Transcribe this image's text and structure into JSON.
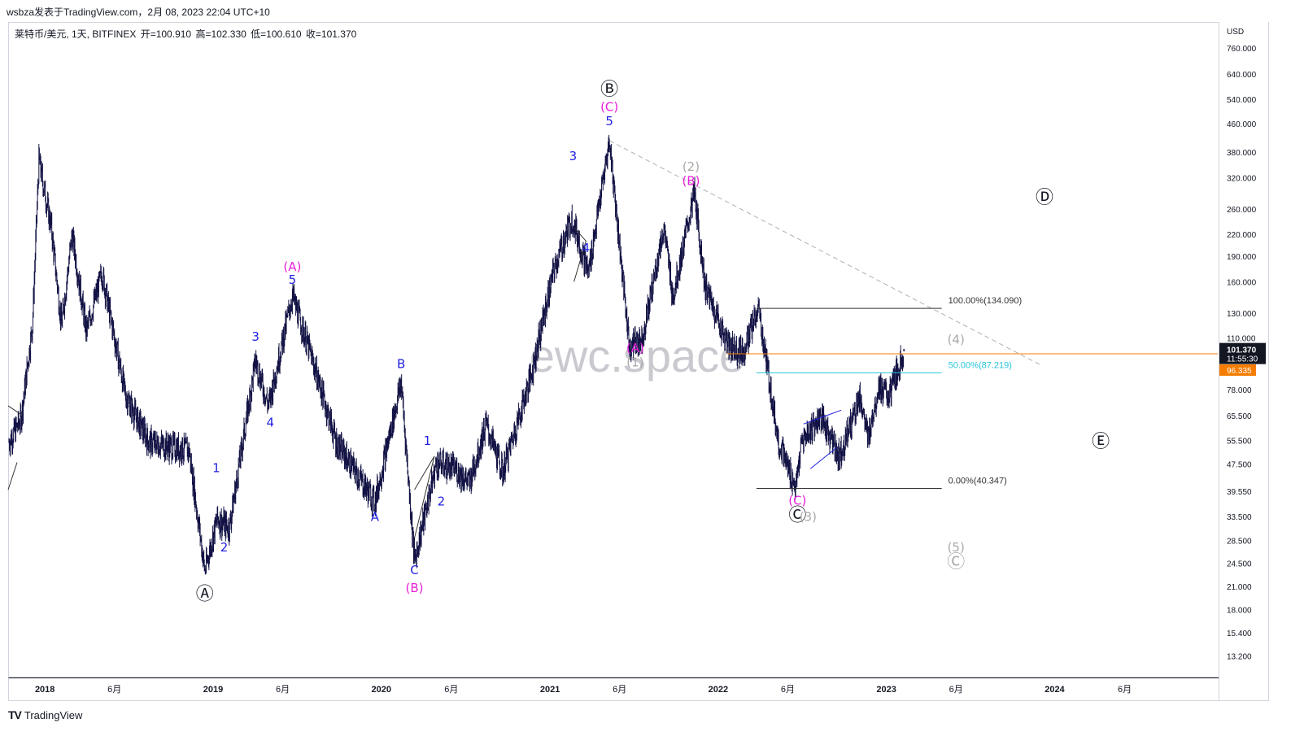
{
  "header": {
    "publish_line": "wsbza发表于TradingView.com，2月 08, 2023 22:04 UTC+10"
  },
  "legend": {
    "symbol": "莱特币/美元, 1天, BITFINEX",
    "open_label": "开=100.910",
    "high_label": "高=102.330",
    "low_label": "低=100.610",
    "close_label": "收=101.370"
  },
  "watermark": "ewc.space",
  "footer": {
    "logo_icon": "tradingview-logo-icon",
    "brand": "TradingView"
  },
  "colors": {
    "candles": "#131345",
    "wave_blue": "#1f1fe0",
    "wave_magenta": "#e61fd9",
    "wave_gray": "#a9a9a9",
    "fib_orange": "#f57c00",
    "fib_cyan": "#26c6da",
    "price_label_bg": "#131722",
    "alt_price_bg": "#f57c00"
  },
  "chart_data": {
    "type": "candlestick",
    "title": "莱特币/美元, 1天, BITFINEX",
    "ylabel": "USD",
    "yscale": "log",
    "ylim": [
      11.5,
      900
    ],
    "xlim": [
      "2017-10-15",
      "2024-12-20"
    ],
    "price_ticks": [
      760,
      640,
      540,
      460,
      380,
      320,
      260,
      220,
      190,
      160,
      130,
      110,
      78,
      65.5,
      55.5,
      47.5,
      39.55,
      33.5,
      28.5,
      24.5,
      21,
      18,
      15.4,
      13.2
    ],
    "price_tick_labels": [
      "760.000",
      "640.000",
      "540.000",
      "460.000",
      "380.000",
      "320.000",
      "260.000",
      "220.000",
      "190.000",
      "160.000",
      "130.000",
      "110.000",
      "78.000",
      "65.500",
      "55.500",
      "47.500",
      "39.550",
      "33.500",
      "28.500",
      "24.500",
      "21.000",
      "18.000",
      "15.400",
      "13.200"
    ],
    "time_ticks": [
      {
        "date": "2018-01-01",
        "label": "2018"
      },
      {
        "date": "2018-06-01",
        "label": "6月"
      },
      {
        "date": "2019-01-01",
        "label": "2019"
      },
      {
        "date": "2019-06-01",
        "label": "6月"
      },
      {
        "date": "2020-01-01",
        "label": "2020"
      },
      {
        "date": "2020-06-01",
        "label": "6月"
      },
      {
        "date": "2021-01-01",
        "label": "2021"
      },
      {
        "date": "2021-06-01",
        "label": "6月"
      },
      {
        "date": "2022-01-01",
        "label": "2022"
      },
      {
        "date": "2022-06-01",
        "label": "6月"
      },
      {
        "date": "2023-01-01",
        "label": "2023"
      },
      {
        "date": "2023-06-01",
        "label": "6月"
      },
      {
        "date": "2024-01-01",
        "label": "2024"
      },
      {
        "date": "2024-06-01",
        "label": "6月"
      }
    ],
    "price_path": [
      [
        "2017-10-15",
        55
      ],
      [
        "2017-11-10",
        64
      ],
      [
        "2017-12-05",
        120
      ],
      [
        "2017-12-19",
        360
      ],
      [
        "2018-01-15",
        230
      ],
      [
        "2018-02-06",
        120
      ],
      [
        "2018-03-01",
        220
      ],
      [
        "2018-04-01",
        115
      ],
      [
        "2018-05-05",
        170
      ],
      [
        "2018-06-25",
        75
      ],
      [
        "2018-08-15",
        55
      ],
      [
        "2018-11-10",
        52
      ],
      [
        "2018-12-14",
        23.3
      ],
      [
        "2019-01-10",
        33
      ],
      [
        "2019-02-05",
        31
      ],
      [
        "2019-04-03",
        95
      ],
      [
        "2019-05-01",
        70
      ],
      [
        "2019-06-22",
        146
      ],
      [
        "2019-08-10",
        90
      ],
      [
        "2019-09-25",
        55
      ],
      [
        "2019-12-18",
        37
      ],
      [
        "2020-02-13",
        82
      ],
      [
        "2020-03-13",
        25
      ],
      [
        "2020-04-30",
        48
      ],
      [
        "2020-06-10",
        46
      ],
      [
        "2020-07-10",
        42
      ],
      [
        "2020-08-15",
        62
      ],
      [
        "2020-09-20",
        45
      ],
      [
        "2020-11-20",
        85
      ],
      [
        "2021-01-10",
        175
      ],
      [
        "2021-02-18",
        245
      ],
      [
        "2021-03-25",
        170
      ],
      [
        "2021-05-10",
        410
      ],
      [
        "2021-06-22",
        105
      ],
      [
        "2021-07-20",
        110
      ],
      [
        "2021-09-05",
        230
      ],
      [
        "2021-09-25",
        145
      ],
      [
        "2021-11-10",
        290
      ],
      [
        "2021-12-04",
        155
      ],
      [
        "2022-01-22",
        105
      ],
      [
        "2022-02-24",
        100
      ],
      [
        "2022-03-29",
        134
      ],
      [
        "2022-05-12",
        55
      ],
      [
        "2022-06-18",
        40.3
      ],
      [
        "2022-07-01",
        55
      ],
      [
        "2022-08-10",
        65
      ],
      [
        "2022-09-21",
        50
      ],
      [
        "2022-11-05",
        75
      ],
      [
        "2022-11-21",
        56
      ],
      [
        "2022-12-15",
        80
      ],
      [
        "2023-01-06",
        74
      ],
      [
        "2023-02-08",
        101.37
      ]
    ],
    "last_price": 101.37,
    "last_price_label": "101.370",
    "countdown_label": "11:55:30",
    "alt_price_label": "96.335",
    "fib_levels": [
      {
        "label": "100.00%(134.090)",
        "value": 134.09
      },
      {
        "label": "50.00%(87.219)",
        "value": 87.219
      },
      {
        "label": "0.00%(40.347)",
        "value": 40.347
      }
    ],
    "wave_labels": [
      {
        "text": "Ⓐ",
        "date": "2018-12-14",
        "price": 19.2,
        "color": "#131722"
      },
      {
        "text": "1",
        "date": "2019-01-08",
        "price": 45,
        "color": "#1f1fe0"
      },
      {
        "text": "2",
        "date": "2019-01-25",
        "price": 26.5,
        "color": "#1f1fe0"
      },
      {
        "text": "3",
        "date": "2019-04-03",
        "price": 108,
        "color": "#1f1fe0"
      },
      {
        "text": "4",
        "date": "2019-05-05",
        "price": 61,
        "color": "#1f1fe0"
      },
      {
        "text": "5",
        "date": "2019-06-22",
        "price": 158,
        "color": "#1f1fe0"
      },
      {
        "text": "(A)",
        "date": "2019-06-22",
        "price": 172,
        "color": "#e61fd9"
      },
      {
        "text": "A",
        "date": "2019-12-18",
        "price": 32.5,
        "color": "#1f1fe0"
      },
      {
        "text": "B",
        "date": "2020-02-13",
        "price": 90,
        "color": "#1f1fe0"
      },
      {
        "text": "C",
        "date": "2020-03-13",
        "price": 22.8,
        "color": "#1f1fe0"
      },
      {
        "text": "(B)",
        "date": "2020-03-13",
        "price": 20.2,
        "color": "#e61fd9"
      },
      {
        "text": "1",
        "date": "2020-04-10",
        "price": 54,
        "color": "#1f1fe0"
      },
      {
        "text": "2",
        "date": "2020-05-10",
        "price": 36,
        "color": "#1f1fe0"
      },
      {
        "text": "3",
        "date": "2021-02-20",
        "price": 360,
        "color": "#1f1fe0"
      },
      {
        "text": "4",
        "date": "2021-03-20",
        "price": 195,
        "color": "#1f1fe0"
      },
      {
        "text": "5",
        "date": "2021-05-10",
        "price": 455,
        "color": "#1f1fe0"
      },
      {
        "text": "(C)",
        "date": "2021-05-10",
        "price": 500,
        "color": "#e61fd9"
      },
      {
        "text": "Ⓑ",
        "date": "2021-05-10",
        "price": 555,
        "color": "#131722"
      },
      {
        "text": "(A)",
        "date": "2021-07-05",
        "price": 100,
        "color": "#e61fd9"
      },
      {
        "text": "(1)",
        "date": "2021-07-05",
        "price": 91,
        "color": "#a9a9a9"
      },
      {
        "text": "(2)",
        "date": "2021-11-03",
        "price": 335,
        "color": "#a9a9a9"
      },
      {
        "text": "(B)",
        "date": "2021-11-03",
        "price": 305,
        "color": "#e61fd9"
      },
      {
        "text": "Ⓓ",
        "date": "2023-12-10",
        "price": 270,
        "color": "#131722"
      },
      {
        "text": "(4)",
        "date": "2023-06-01",
        "price": 106,
        "color": "#a9a9a9"
      },
      {
        "text": "(C)",
        "date": "2022-06-22",
        "price": 36.2,
        "color": "#e61fd9"
      },
      {
        "text": "Ⓒ",
        "date": "2022-06-22",
        "price": 32.5,
        "color": "#131722"
      },
      {
        "text": "(3)",
        "date": "2022-07-15",
        "price": 32.5,
        "color": "#a9a9a9"
      },
      {
        "text": "(5)",
        "date": "2023-06-01",
        "price": 26.5,
        "color": "#a9a9a9"
      },
      {
        "text": "Ⓒ",
        "date": "2023-06-01",
        "price": 23.8,
        "color": "#a9a9a9"
      },
      {
        "text": "Ⓔ",
        "date": "2024-04-10",
        "price": 53,
        "color": "#131722"
      }
    ]
  }
}
